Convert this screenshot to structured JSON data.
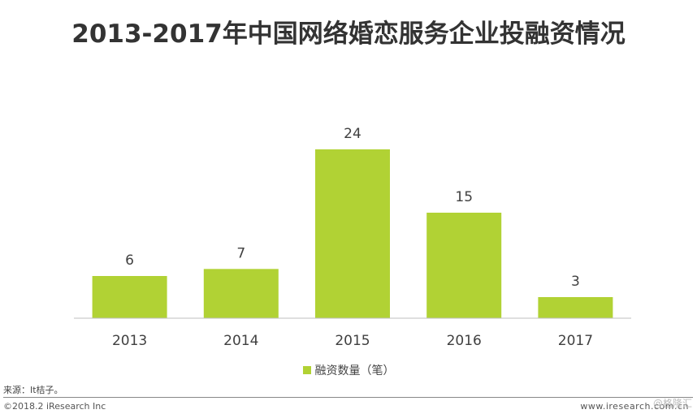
{
  "title": "2013-2017年中国网络婚恋服务企业投融资情况",
  "chart_data": {
    "type": "bar",
    "categories": [
      "2013",
      "2014",
      "2015",
      "2016",
      "2017"
    ],
    "series": [
      {
        "name": "融资数量（笔）",
        "values": [
          6,
          7,
          24,
          15,
          3
        ]
      }
    ],
    "data_labels": [
      "6",
      "7",
      "24",
      "15",
      "3"
    ],
    "ylim": [
      0,
      24
    ],
    "grid": false,
    "legend_position": "bottom",
    "bar_color": "#b1d234"
  },
  "legend": {
    "label": "融资数量（笔）"
  },
  "footer": {
    "source": "来源：It桔子。",
    "copyright": "©2018.2 iResearch Inc",
    "website": "www.iresearch.com.cn",
    "watermark": "@格隆汇"
  }
}
